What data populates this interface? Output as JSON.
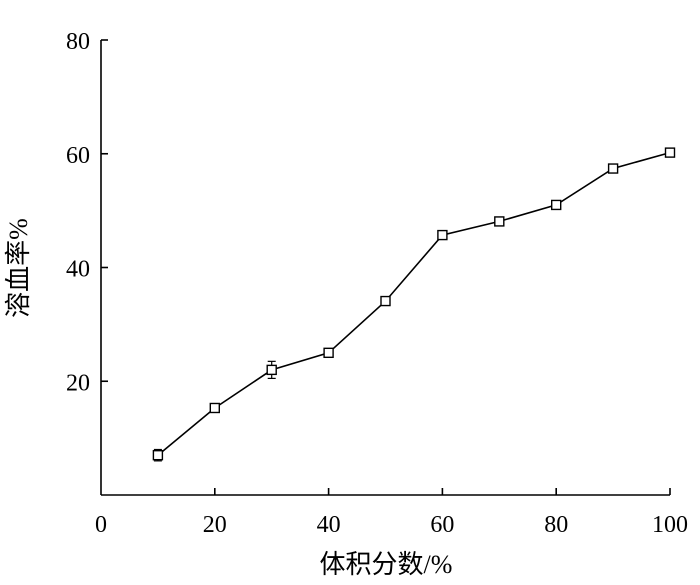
{
  "chart_data": {
    "type": "line",
    "title": "",
    "xlabel": "体积分数/%",
    "ylabel": "溶血率%",
    "xlim": [
      0,
      100
    ],
    "ylim": [
      0,
      80
    ],
    "xticks": [
      0,
      20,
      40,
      60,
      80,
      100
    ],
    "yticks": [
      20,
      40,
      60,
      80
    ],
    "x_tick_labels": [
      "0",
      "20",
      "40",
      "60",
      "80",
      "100"
    ],
    "y_tick_labels": [
      "20",
      "40",
      "60",
      "80"
    ],
    "grid": false,
    "marker": "open-square",
    "series": [
      {
        "x": [
          10,
          20,
          30,
          40,
          50,
          60,
          70,
          80,
          90,
          100
        ],
        "y": [
          7.0,
          15.3,
          22.0,
          25.0,
          34.1,
          45.7,
          48.1,
          51.0,
          57.4,
          60.2
        ],
        "error": [
          1.0,
          0.5,
          1.5,
          0.5,
          0.5,
          0.5,
          0.5,
          0.5,
          0.6,
          0.6
        ]
      }
    ]
  }
}
